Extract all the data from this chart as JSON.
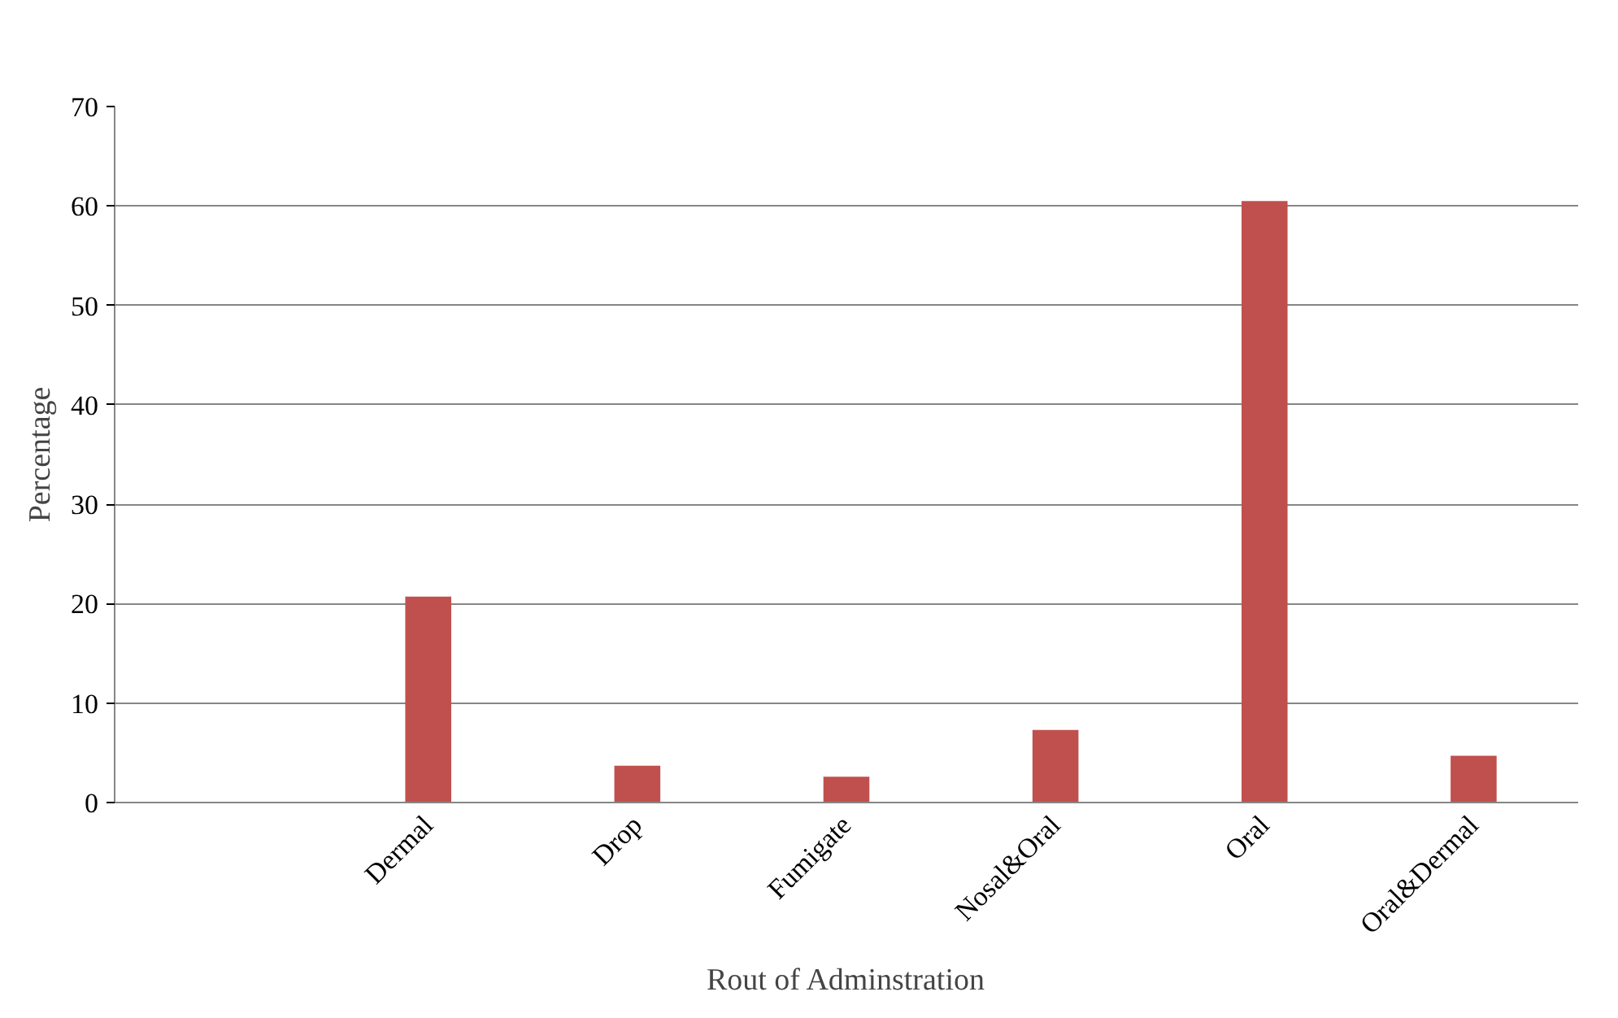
{
  "chart_data": {
    "type": "bar",
    "categories": [
      null,
      "Dermal",
      "Drop",
      "Fumigate",
      "Nosal&Oral",
      "Oral",
      "Oral&Dermal"
    ],
    "values": [
      null,
      20.7,
      3.7,
      2.6,
      7.3,
      60.5,
      4.7
    ],
    "color": "#c0504d",
    "xlabel": "Rout of Adminstration",
    "ylabel": "Percentage",
    "ylim": [
      0,
      70
    ],
    "yticks": [
      0,
      10,
      20,
      30,
      40,
      50,
      60,
      70
    ],
    "grid": "y"
  }
}
